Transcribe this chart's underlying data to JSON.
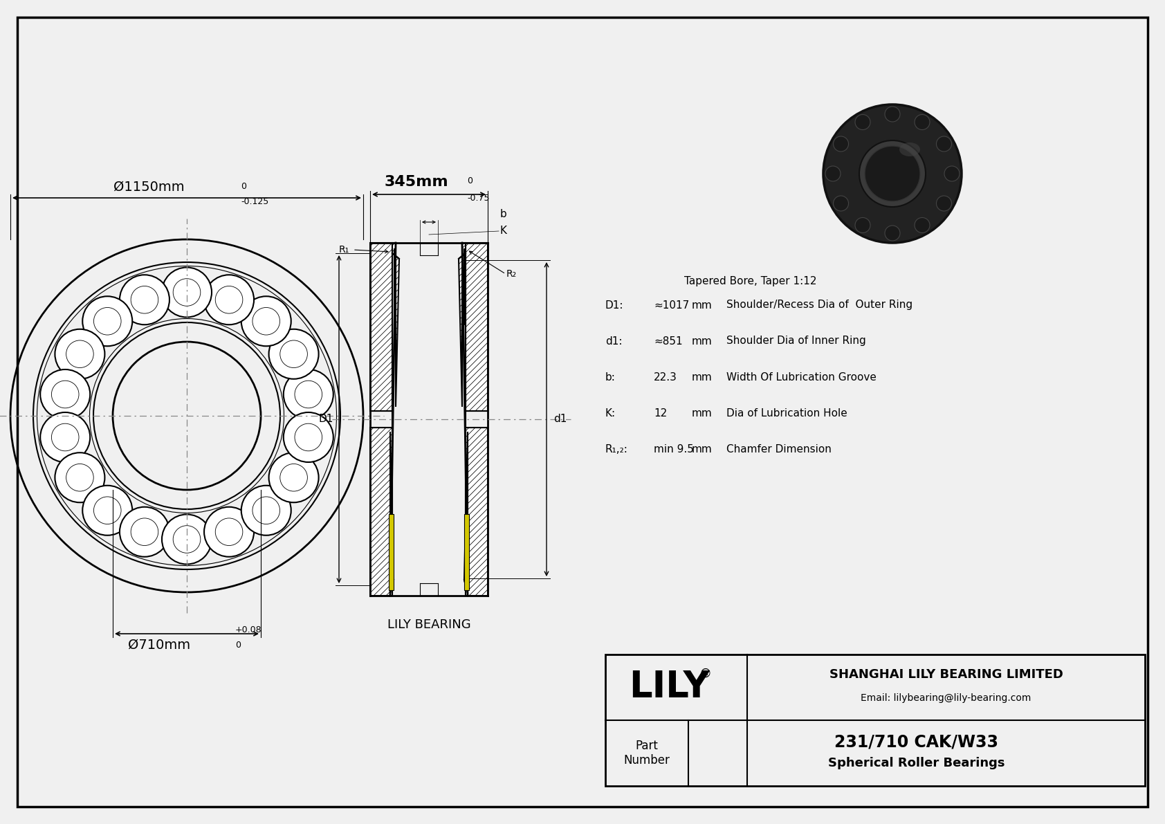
{
  "bg_color": "#f0f0f0",
  "border_color": "#000000",
  "title": "231/710 CAK/W33",
  "subtitle": "Spherical Roller Bearings",
  "company": "SHANGHAI LILY BEARING LIMITED",
  "email": "Email: lilybearing@lily-bearing.com",
  "lily_text": "LILY",
  "outer_dia_label": "Ø1150mm",
  "outer_tol_upper": "0",
  "outer_tol_lower": "-0.125",
  "inner_dia_label": "Ø710mm",
  "inner_tol_upper": "+0.08",
  "inner_tol_lower": "0",
  "width_label": "345mm",
  "width_tol_upper": "0",
  "width_tol_lower": "-0.75",
  "lily_bearing_label": "LILY BEARING",
  "tapered_bore": "Tapered Bore, Taper 1:12",
  "D1_label": "D1:",
  "D1_val": "≈1017",
  "D1_unit": "mm",
  "D1_desc": "Shoulder/Recess Dia of  Outer Ring",
  "d1_label": "d1:",
  "d1_val": "≈851",
  "d1_unit": "mm",
  "d1_desc": "Shoulder Dia of Inner Ring",
  "b_label": "b:",
  "b_val": "22.3",
  "b_unit": "mm",
  "b_desc": "Width Of Lubrication Groove",
  "K_label": "K:",
  "K_val": "12",
  "K_unit": "mm",
  "K_desc": "Dia of Lubrication Hole",
  "R12_label": "R₁,₂:",
  "R12_val": "min 9.5",
  "R12_unit": "mm",
  "R12_desc": "Chamfer Dimension",
  "line_color": "#000000",
  "yellow_color": "#d4c800",
  "gray_color": "#cccccc"
}
